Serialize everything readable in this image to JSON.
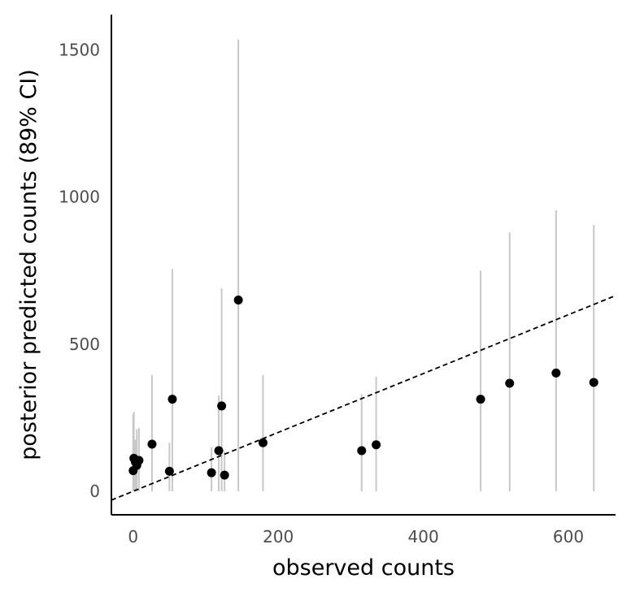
{
  "chart_data": {
    "type": "scatter",
    "title": "",
    "xlabel": "observed counts",
    "ylabel": "posterior predicted counts (89% CI)",
    "xlim": [
      -30,
      665
    ],
    "ylim": [
      -80,
      1620
    ],
    "x_ticks": [
      0,
      200,
      400,
      600
    ],
    "y_ticks": [
      0,
      500,
      1000,
      1500
    ],
    "x_tick_labels": [
      "0",
      "200",
      "400",
      "600"
    ],
    "y_tick_labels": [
      "0",
      "500",
      "1000",
      "1500"
    ],
    "reference_line": {
      "style": "dashed",
      "slope": 1,
      "intercept": 0
    },
    "grid": false,
    "colors": {
      "point": "#000000",
      "interval": "#c8c8c8",
      "axis": "#000000",
      "tick_label": "#4d4d4d"
    },
    "points": [
      {
        "x": 0,
        "y": 70,
        "lo": 0,
        "hi": 260
      },
      {
        "x": 1,
        "y": 112,
        "lo": 0,
        "hi": 270
      },
      {
        "x": 3,
        "y": 100,
        "lo": 0,
        "hi": 175
      },
      {
        "x": 5,
        "y": 88,
        "lo": 0,
        "hi": 210
      },
      {
        "x": 8,
        "y": 105,
        "lo": 0,
        "hi": 215
      },
      {
        "x": 26,
        "y": 160,
        "lo": 0,
        "hi": 395
      },
      {
        "x": 50,
        "y": 68,
        "lo": 0,
        "hi": 165
      },
      {
        "x": 54,
        "y": 313,
        "lo": 0,
        "hi": 755
      },
      {
        "x": 108,
        "y": 63,
        "lo": 0,
        "hi": 150
      },
      {
        "x": 118,
        "y": 138,
        "lo": 0,
        "hi": 325
      },
      {
        "x": 122,
        "y": 290,
        "lo": 0,
        "hi": 690
      },
      {
        "x": 126,
        "y": 55,
        "lo": 0,
        "hi": 135
      },
      {
        "x": 145,
        "y": 650,
        "lo": 0,
        "hi": 1535
      },
      {
        "x": 179,
        "y": 165,
        "lo": 0,
        "hi": 395
      },
      {
        "x": 315,
        "y": 138,
        "lo": 0,
        "hi": 330
      },
      {
        "x": 335,
        "y": 158,
        "lo": 0,
        "hi": 390
      },
      {
        "x": 479,
        "y": 313,
        "lo": 0,
        "hi": 750
      },
      {
        "x": 519,
        "y": 367,
        "lo": 0,
        "hi": 880
      },
      {
        "x": 583,
        "y": 402,
        "lo": 0,
        "hi": 955
      },
      {
        "x": 635,
        "y": 370,
        "lo": 0,
        "hi": 905
      }
    ]
  }
}
